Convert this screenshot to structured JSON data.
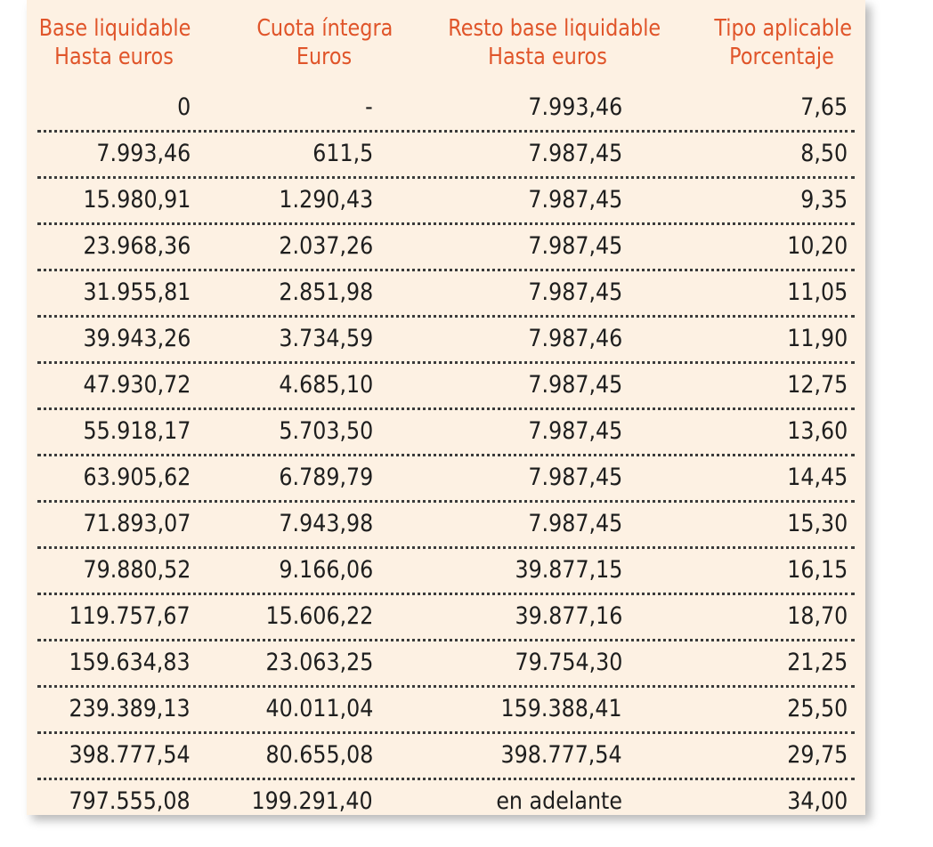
{
  "headers": [
    {
      "line1": "Base liquidable",
      "line2": "Hasta euros"
    },
    {
      "line1": "Cuota íntegra",
      "line2": "Euros"
    },
    {
      "line1": "Resto base liquidable",
      "line2": "Hasta euros"
    },
    {
      "line1": "Tipo aplicable",
      "line2": "Porcentaje"
    }
  ],
  "rows": [
    [
      "0",
      "-",
      "7.993,46",
      "7,65"
    ],
    [
      "7.993,46",
      "611,5",
      "7.987,45",
      "8,50"
    ],
    [
      "15.980,91",
      "1.290,43",
      "7.987,45",
      "9,35"
    ],
    [
      "23.968,36",
      "2.037,26",
      "7.987,45",
      "10,20"
    ],
    [
      "31.955,81",
      "2.851,98",
      "7.987,45",
      "11,05"
    ],
    [
      "39.943,26",
      "3.734,59",
      "7.987,46",
      "11,90"
    ],
    [
      "47.930,72",
      "4.685,10",
      "7.987,45",
      "12,75"
    ],
    [
      "55.918,17",
      "5.703,50",
      "7.987,45",
      "13,60"
    ],
    [
      "63.905,62",
      "6.789,79",
      "7.987,45",
      "14,45"
    ],
    [
      "71.893,07",
      "7.943,98",
      "7.987,45",
      "15,30"
    ],
    [
      "79.880,52",
      "9.166,06",
      "39.877,15",
      "16,15"
    ],
    [
      "119.757,67",
      "15.606,22",
      "39.877,16",
      "18,70"
    ],
    [
      "159.634,83",
      "23.063,25",
      "79.754,30",
      "21,25"
    ],
    [
      "239.389,13",
      "40.011,04",
      "159.388,41",
      "25,50"
    ],
    [
      "398.777,54",
      "80.655,08",
      "398.777,54",
      "29,75"
    ],
    [
      "797.555,08",
      "199.291,40",
      "en adelante",
      "34,00"
    ]
  ],
  "colors": {
    "background": "#fdf1e3",
    "header_text": "#e0552a",
    "body_text": "#1e1e1e",
    "divider": "#3b3b3b"
  }
}
